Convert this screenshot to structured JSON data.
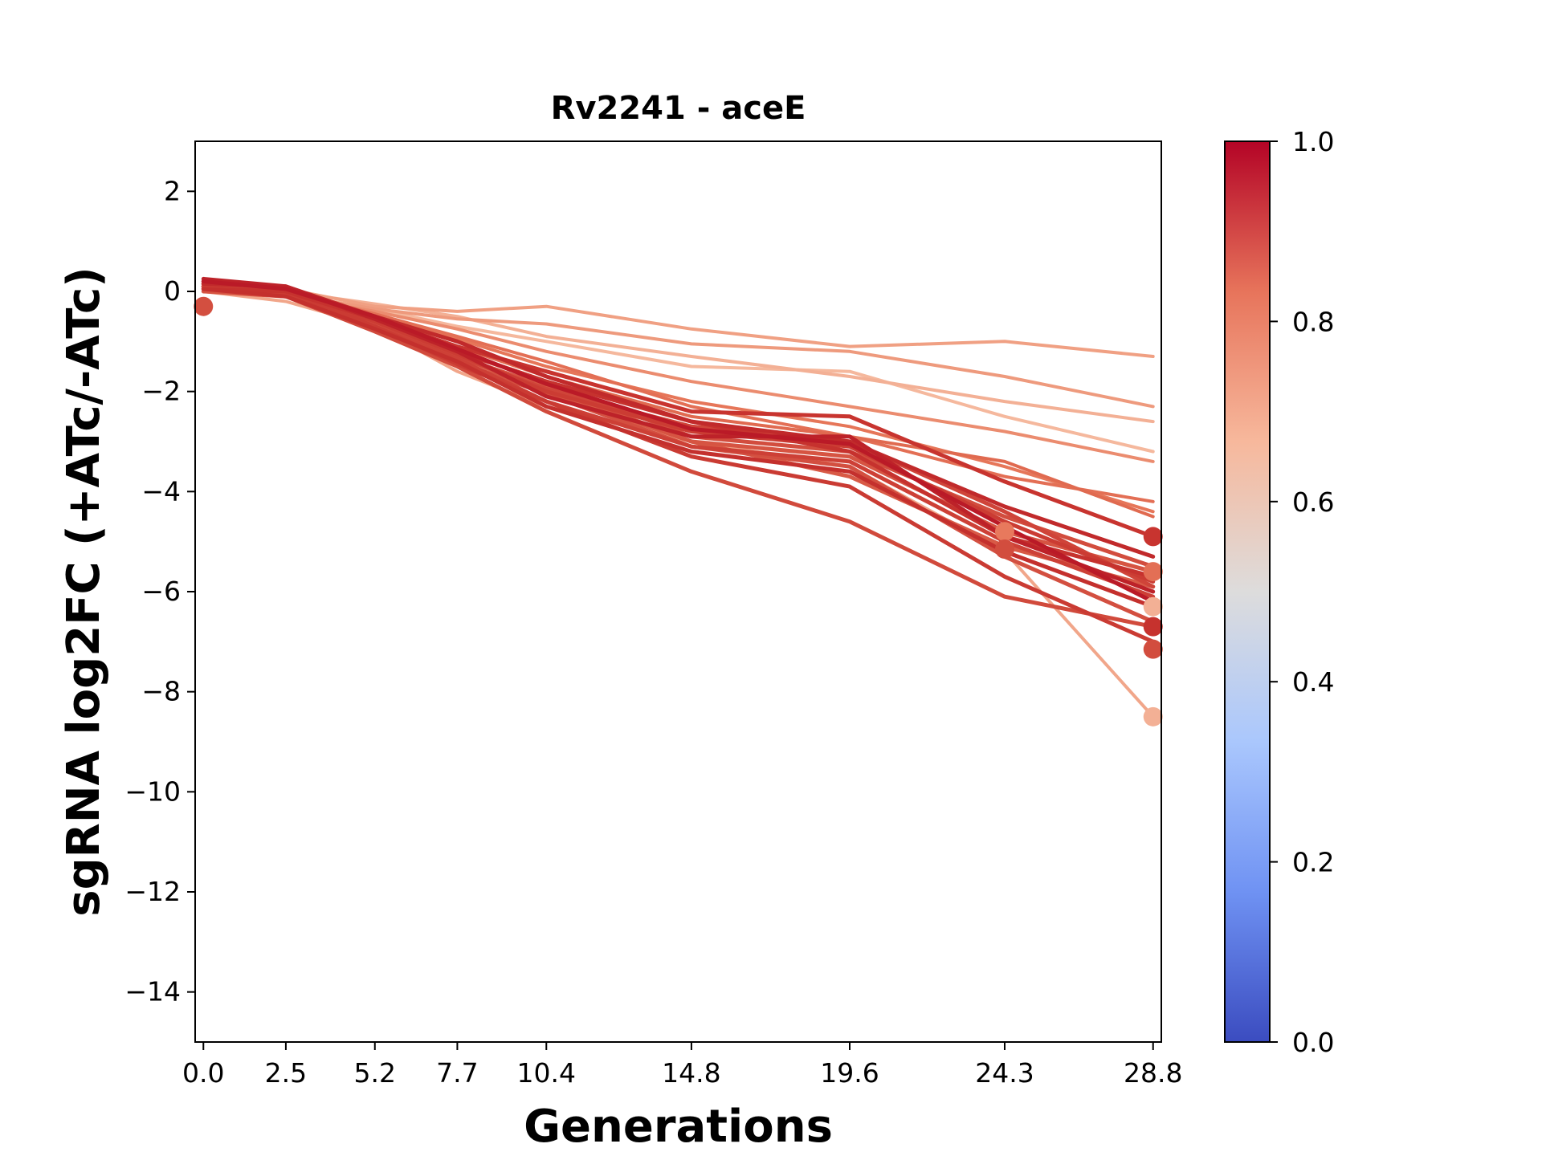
{
  "chart_data": {
    "type": "line",
    "title": "Rv2241 - aceE",
    "xlabel": "Generations",
    "ylabel": "sgRNA log2FC (+ATc/-ATc)",
    "x": [
      0.0,
      2.5,
      5.2,
      7.7,
      10.4,
      14.8,
      19.6,
      24.3,
      28.8
    ],
    "x_tick_labels": [
      "0.0",
      "2.5",
      "5.2",
      "7.7",
      "10.4",
      "14.8",
      "19.6",
      "24.3",
      "28.8"
    ],
    "xlim": [
      -0.25,
      29.05
    ],
    "ylim": [
      -15,
      3
    ],
    "y_ticks": [
      2,
      0,
      -2,
      -4,
      -6,
      -8,
      -10,
      -12,
      -14
    ],
    "y_tick_labels": [
      "2",
      "0",
      "−2",
      "−4",
      "−6",
      "−8",
      "−10",
      "−12",
      "−14"
    ],
    "grid": false,
    "colormap": "coolwarm",
    "colorbar": {
      "range": [
        0.0,
        1.0
      ],
      "ticks": [
        0.0,
        0.2,
        0.4,
        0.6,
        0.8,
        1.0
      ],
      "tick_labels": [
        "0.0",
        "0.2",
        "0.4",
        "0.6",
        "0.8",
        "1.0"
      ],
      "stops": [
        "#3b4cc0",
        "#6f92f3",
        "#aac7fd",
        "#dddcdc",
        "#f7b89c",
        "#e7745b",
        "#b40426"
      ]
    },
    "series": [
      {
        "color_value": 0.74,
        "color": "#f0a083",
        "values": [
          0.1,
          0.05,
          -0.3,
          -0.4,
          -0.3,
          -0.75,
          -1.1,
          -1.0,
          -1.3
        ]
      },
      {
        "color_value": 0.76,
        "color": "#ee9a7d",
        "values": [
          0.05,
          -0.05,
          -0.35,
          -0.55,
          -0.65,
          -1.05,
          -1.2,
          -1.7,
          -2.3
        ]
      },
      {
        "color_value": 0.69,
        "color": "#f3b095",
        "values": [
          0.1,
          0.0,
          -0.25,
          -0.5,
          -0.9,
          -1.3,
          -1.7,
          -2.2,
          -2.6
        ]
      },
      {
        "color_value": 0.66,
        "color": "#f5b89d",
        "values": [
          0.05,
          -0.05,
          -0.35,
          -0.7,
          -1.0,
          -1.5,
          -1.6,
          -2.5,
          -3.2
        ]
      },
      {
        "color_value": 0.79,
        "color": "#eb8c6f",
        "values": [
          0.0,
          -0.1,
          -0.4,
          -0.75,
          -1.2,
          -1.8,
          -2.3,
          -2.8,
          -3.4
        ]
      },
      {
        "color_value": 0.84,
        "color": "#e36f55",
        "values": [
          0.1,
          0.0,
          -0.45,
          -0.9,
          -1.4,
          -2.3,
          -2.9,
          -3.7,
          -4.2
        ]
      },
      {
        "color_value": 0.82,
        "color": "#e67659",
        "values": [
          0.05,
          -0.1,
          -0.5,
          -0.95,
          -1.5,
          -2.2,
          -2.7,
          -3.5,
          -4.4
        ]
      },
      {
        "color_value": 0.94,
        "color": "#c8342f",
        "values": [
          0.2,
          0.05,
          -0.55,
          -1.1,
          -1.6,
          -2.4,
          -2.5,
          -3.8,
          -4.9
        ]
      },
      {
        "color_value": 0.96,
        "color": "#c12a2b",
        "values": [
          0.15,
          0.1,
          -0.5,
          -1.0,
          -1.7,
          -2.6,
          -3.0,
          -4.3,
          -5.3
        ]
      },
      {
        "color_value": 0.9,
        "color": "#d24d3e",
        "values": [
          0.1,
          -0.05,
          -0.6,
          -1.2,
          -1.8,
          -2.9,
          -3.2,
          -4.5,
          -5.5
        ]
      },
      {
        "color_value": 0.88,
        "color": "#d65442",
        "values": [
          0.0,
          -0.1,
          -0.65,
          -1.3,
          -1.9,
          -3.0,
          -3.3,
          -4.8,
          -5.6
        ]
      },
      {
        "color_value": 0.93,
        "color": "#cb3c33",
        "values": [
          0.15,
          0.0,
          -0.6,
          -1.25,
          -2.0,
          -2.8,
          -3.1,
          -4.6,
          -5.8
        ]
      },
      {
        "color_value": 0.97,
        "color": "#bd2229",
        "values": [
          0.25,
          0.1,
          -0.55,
          -1.2,
          -2.1,
          -2.9,
          -2.9,
          -4.9,
          -6.0
        ]
      },
      {
        "color_value": 0.92,
        "color": "#cd4036",
        "values": [
          0.1,
          -0.05,
          -0.7,
          -1.35,
          -2.2,
          -3.1,
          -3.4,
          -5.0,
          -6.1
        ]
      },
      {
        "color_value": 0.95,
        "color": "#c4302d",
        "values": [
          0.05,
          -0.1,
          -0.75,
          -1.4,
          -2.3,
          -3.2,
          -3.6,
          -5.2,
          -6.3
        ]
      },
      {
        "color_value": 0.91,
        "color": "#cf4439",
        "values": [
          0.1,
          0.0,
          -0.6,
          -1.3,
          -1.95,
          -2.7,
          -3.0,
          -4.4,
          -5.9
        ]
      },
      {
        "color_value": 0.98,
        "color": "#ba1a27",
        "values": [
          0.2,
          0.05,
          -0.5,
          -1.15,
          -1.85,
          -2.75,
          -3.05,
          -4.7,
          -6.2
        ]
      },
      {
        "color_value": 0.89,
        "color": "#d34f40",
        "values": [
          0.05,
          -0.05,
          -0.65,
          -1.4,
          -2.05,
          -3.1,
          -3.5,
          -5.3,
          -6.6
        ]
      },
      {
        "color_value": 0.93,
        "color": "#ca3b33",
        "values": [
          0.15,
          0.0,
          -0.7,
          -1.45,
          -2.2,
          -3.3,
          -3.9,
          -5.7,
          -7.0
        ]
      },
      {
        "color_value": 0.9,
        "color": "#d14a3c",
        "values": [
          0.1,
          -0.1,
          -0.8,
          -1.5,
          -2.4,
          -3.6,
          -4.6,
          -6.1,
          -6.7
        ]
      },
      {
        "color_value": 0.85,
        "color": "#e06a50",
        "values": [
          0.0,
          -0.1,
          -0.55,
          -1.1,
          -1.7,
          -2.5,
          -2.9,
          -3.4,
          -4.5
        ]
      },
      {
        "color_value": 0.72,
        "color": "#f1a68a",
        "values": [
          0.0,
          -0.2,
          -0.7,
          -1.6,
          -2.3,
          -3.0,
          -3.5,
          -5.2,
          -8.5
        ]
      },
      {
        "color_value": 0.87,
        "color": "#d85a46",
        "values": [
          0.1,
          -0.05,
          -0.6,
          -1.3,
          -2.0,
          -3.0,
          -3.7,
          -5.1,
          -5.9
        ]
      },
      {
        "color_value": 0.94,
        "color": "#c6322e",
        "values": [
          0.05,
          0.0,
          -0.55,
          -1.2,
          -1.8,
          -2.6,
          -3.2,
          -4.9,
          -5.7
        ]
      }
    ],
    "markers": [
      {
        "x": 0.0,
        "y": -0.3,
        "color": "#d34f40"
      },
      {
        "x": 24.3,
        "y": -4.8,
        "color": "#e8795d"
      },
      {
        "x": 24.3,
        "y": -5.15,
        "color": "#d24d3e"
      },
      {
        "x": 28.8,
        "y": -4.9,
        "color": "#c8342f"
      },
      {
        "x": 28.8,
        "y": -5.6,
        "color": "#e36f55"
      },
      {
        "x": 28.8,
        "y": -6.3,
        "color": "#f3b095"
      },
      {
        "x": 28.8,
        "y": -6.7,
        "color": "#c6322e"
      },
      {
        "x": 28.8,
        "y": -7.15,
        "color": "#d24d3e"
      },
      {
        "x": 28.8,
        "y": -8.5,
        "color": "#f3b095"
      }
    ]
  }
}
